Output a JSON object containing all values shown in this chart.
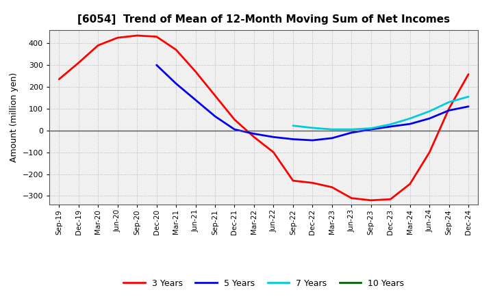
{
  "title": "[6054]  Trend of Mean of 12-Month Moving Sum of Net Incomes",
  "ylabel": "Amount (million yen)",
  "plot_bg_color": "#f0f0f0",
  "fig_bg_color": "#ffffff",
  "grid_color": "#999999",
  "ylim": [
    -340,
    460
  ],
  "yticks": [
    -300,
    -200,
    -100,
    0,
    100,
    200,
    300,
    400
  ],
  "x_labels": [
    "Sep-19",
    "Dec-19",
    "Mar-20",
    "Jun-20",
    "Sep-20",
    "Dec-20",
    "Mar-21",
    "Jun-21",
    "Sep-21",
    "Dec-21",
    "Mar-22",
    "Jun-22",
    "Sep-22",
    "Dec-22",
    "Mar-23",
    "Jun-23",
    "Sep-23",
    "Dec-23",
    "Mar-24",
    "Jun-24",
    "Sep-24",
    "Dec-24"
  ],
  "series": [
    {
      "label": "3 Years",
      "color": "#ff0000",
      "linewidth": 2.0,
      "data_x": [
        0,
        1,
        2,
        3,
        4,
        5,
        6,
        7,
        8,
        9,
        10,
        11,
        12,
        13,
        14,
        15,
        16,
        17,
        18,
        19,
        20,
        21
      ],
      "data_y": [
        235,
        310,
        390,
        425,
        435,
        430,
        370,
        270,
        160,
        50,
        -30,
        -100,
        -230,
        -240,
        -260,
        -310,
        -320,
        -315,
        -245,
        -100,
        100,
        258
      ]
    },
    {
      "label": "5 Years",
      "color": "#0000ee",
      "linewidth": 2.0,
      "data_x": [
        5,
        6,
        7,
        8,
        9,
        10,
        11,
        12,
        13,
        14,
        15,
        16,
        17,
        18,
        19,
        20,
        21
      ],
      "data_y": [
        300,
        215,
        140,
        65,
        5,
        -15,
        -30,
        -40,
        -45,
        -35,
        -10,
        5,
        18,
        30,
        55,
        92,
        110
      ]
    },
    {
      "label": "7 Years",
      "color": "#00ccdd",
      "linewidth": 2.0,
      "data_x": [
        12,
        13,
        14,
        15,
        16,
        17,
        18,
        19,
        20,
        21
      ],
      "data_y": [
        22,
        12,
        5,
        5,
        10,
        28,
        55,
        88,
        130,
        155
      ]
    },
    {
      "label": "10 Years",
      "color": "#006600",
      "linewidth": 2.0,
      "data_x": [],
      "data_y": []
    }
  ],
  "legend_colors": [
    "#ff0000",
    "#0000ee",
    "#00ccdd",
    "#006600"
  ],
  "legend_labels": [
    "3 Years",
    "5 Years",
    "7 Years",
    "10 Years"
  ]
}
